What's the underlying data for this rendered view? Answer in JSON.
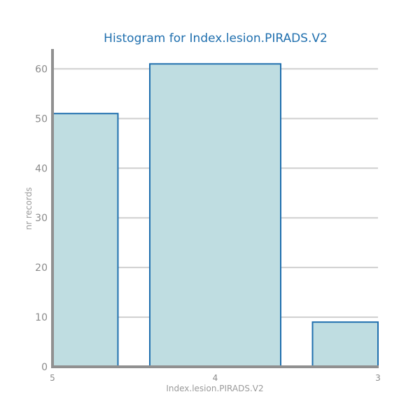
{
  "chart_data": {
    "type": "bar",
    "title": "Histogram for Index.lesion.PIRADS.V2",
    "xlabel": "Index.lesion.PIRADS.V2",
    "ylabel": "nr records",
    "categories": [
      "5",
      "4",
      "3"
    ],
    "values": [
      51,
      61,
      9
    ],
    "ylim": [
      0,
      64
    ],
    "yticks": [
      0,
      10,
      20,
      30,
      40,
      50,
      60
    ],
    "grid": true,
    "colors": {
      "bar_fill": "#bfdde1",
      "bar_stroke": "#1f6fae",
      "title": "#1f6fae",
      "axis": "#909090",
      "grid": "#cfcfcf"
    }
  }
}
